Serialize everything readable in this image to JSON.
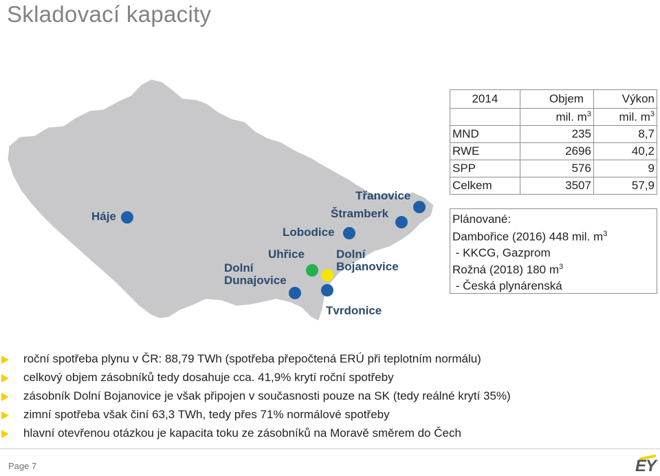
{
  "title": "Skladovací kapacity",
  "map": {
    "labels": {
      "haje": "Háje",
      "tranovice": "Třanovice",
      "stramberk": "Štramberk",
      "lobodice": "Lobodice",
      "uhrice": "Uhřice",
      "dolni_bojanovice_1": "Dolní",
      "dolni_bojanovice_2": "Bojanovice",
      "dolni_dunajovice_1": "Dolní",
      "dolni_dunajovice_2": "Dunajovice",
      "tvrdonice": "Tvrdonice"
    },
    "colors": {
      "map_fill": "#c8c8ca",
      "existing_storage": "#1f5fa8",
      "planned_green": "#22b14c",
      "planned_yellow": "#f5e600"
    }
  },
  "table": {
    "header": {
      "year": "2014",
      "col1": "Objem",
      "col2": "Výkon"
    },
    "unit": {
      "col1": "mil. m",
      "col2": "mil. m",
      "exp": "3"
    },
    "rows": [
      {
        "name": "MND",
        "volume": "235",
        "output": "8,7"
      },
      {
        "name": "RWE",
        "volume": "2696",
        "output": "40,2"
      },
      {
        "name": "SPP",
        "volume": "576",
        "output": "9"
      },
      {
        "name": "Celkem",
        "volume": "3507",
        "output": "57,9"
      }
    ]
  },
  "planned": {
    "heading": "Plánované:",
    "line1": "Dambořice (2016) 448 mil. m",
    "line1_exp": "3",
    "line2": " - KKCG, Gazprom",
    "line3": "Rožná (2018) 180 m",
    "line3_exp": "3",
    "line4": " - Česká plynárenská"
  },
  "bullets": [
    "roční spotřeba plynu v ČR: 88,79 TWh (spotřeba přepočtená ERÚ při teplotním normálu)",
    "celkový objem zásobníků tedy dosahuje cca. 41,9% krytí roční spotřeby",
    "zásobník Dolní Bojanovice je však připojen v současnosti pouze na SK (tedy reálné krytí 35%)",
    "zimní spotřeba však činí 63,3 TWh, tedy přes 71% normálové spotřeby",
    "hlavní otevřenou otázkou je kapacita toku ze zásobníků na Moravě směrem do Čech"
  ],
  "footer": {
    "page": "Page 7",
    "logo": "EY",
    "accent": "#f4d000"
  }
}
